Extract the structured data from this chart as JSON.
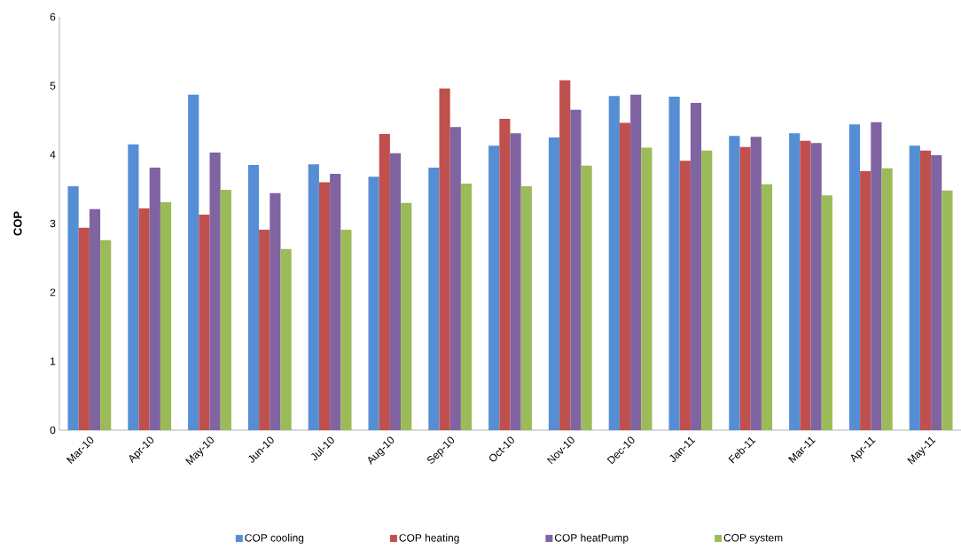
{
  "chart_data": {
    "type": "bar",
    "ylabel": "COP",
    "categories": [
      "Mar-10",
      "Apr-10",
      "May-10",
      "Jun-10",
      "Jul-10",
      "Aug-10",
      "Sep-10",
      "Oct-10",
      "Nov-10",
      "Dec-10",
      "Jan-11",
      "Feb-11",
      "Mar-11",
      "Apr-11",
      "May-11"
    ],
    "series": [
      {
        "name": "COP cooling",
        "color": "#558ed5",
        "values": [
          3.54,
          4.15,
          4.87,
          3.85,
          3.86,
          3.68,
          3.81,
          4.13,
          4.25,
          4.85,
          4.84,
          4.27,
          4.31,
          4.44,
          4.13
        ]
      },
      {
        "name": "COP  heating",
        "color": "#c0504d",
        "values": [
          2.94,
          3.22,
          3.13,
          2.91,
          3.6,
          4.3,
          4.96,
          4.52,
          5.08,
          4.46,
          3.91,
          4.11,
          4.2,
          3.76,
          4.06
        ]
      },
      {
        "name": "COP heatPump",
        "color": "#8064a2",
        "values": [
          3.21,
          3.81,
          4.03,
          3.44,
          3.72,
          4.02,
          4.4,
          4.31,
          4.65,
          4.87,
          4.75,
          4.26,
          4.17,
          4.47,
          3.99
        ]
      },
      {
        "name": "COP system",
        "color": "#9bbb59",
        "values": [
          2.76,
          3.31,
          3.49,
          2.63,
          2.91,
          3.3,
          3.58,
          3.54,
          3.84,
          4.1,
          4.06,
          3.57,
          3.41,
          3.8,
          3.48
        ]
      }
    ],
    "ylim": [
      0,
      6
    ],
    "yticks": [
      0,
      1,
      2,
      3,
      4,
      5,
      6
    ],
    "grid": false,
    "legend": "bottom"
  }
}
